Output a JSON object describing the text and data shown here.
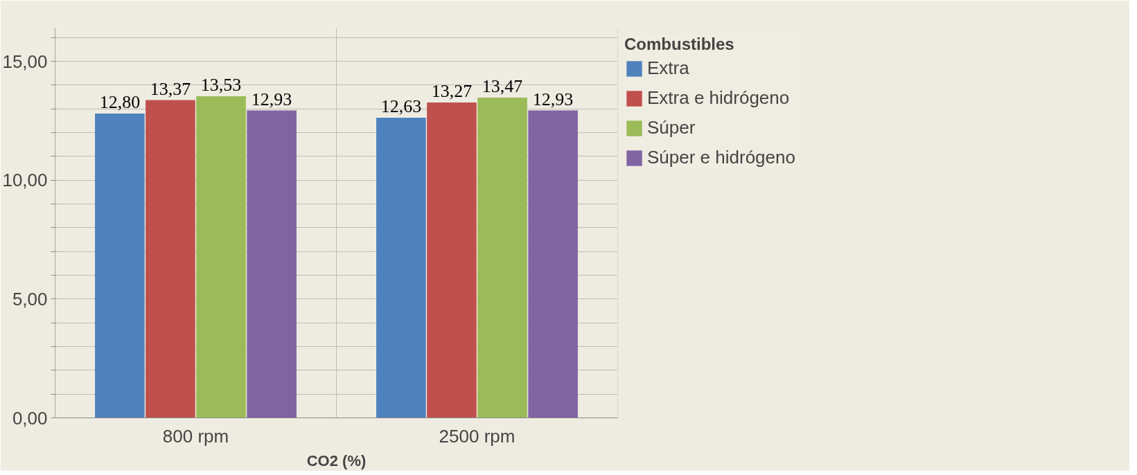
{
  "chart_data": {
    "type": "bar",
    "xlabel": "CO2 (%)",
    "legend_title": "Combustibles",
    "categories": [
      "800 rpm",
      "2500 rpm"
    ],
    "series": [
      {
        "name": "Extra",
        "color": "#4f81bd",
        "values": [
          12.8,
          12.63
        ],
        "value_labels": [
          "12,80",
          "12,63"
        ]
      },
      {
        "name": "Extra e hidrógeno",
        "color": "#c0504d",
        "values": [
          13.37,
          13.27
        ],
        "value_labels": [
          "13,37",
          "13,27"
        ]
      },
      {
        "name": "Súper",
        "color": "#9bbb59",
        "values": [
          13.53,
          13.47
        ],
        "value_labels": [
          "13,53",
          "13,47"
        ]
      },
      {
        "name": "Súper e hidrógeno",
        "color": "#8064a2",
        "values": [
          12.93,
          12.93
        ],
        "value_labels": [
          "12,93",
          "12,93"
        ]
      }
    ],
    "ylim": [
      0,
      16.4
    ],
    "yticks": [
      {
        "value": 0,
        "label": "0,00"
      },
      {
        "value": 1,
        "label": null
      },
      {
        "value": 2,
        "label": null
      },
      {
        "value": 3,
        "label": null
      },
      {
        "value": 4,
        "label": null
      },
      {
        "value": 5,
        "label": "5,00"
      },
      {
        "value": 6,
        "label": null
      },
      {
        "value": 7,
        "label": null
      },
      {
        "value": 8,
        "label": null
      },
      {
        "value": 9,
        "label": null
      },
      {
        "value": 10,
        "label": "10,00"
      },
      {
        "value": 11,
        "label": null
      },
      {
        "value": 12,
        "label": null
      },
      {
        "value": 13,
        "label": null
      },
      {
        "value": 14,
        "label": null
      },
      {
        "value": 15,
        "label": "15,00"
      },
      {
        "value": 16,
        "label": null
      }
    ],
    "grid": true,
    "legend": "right"
  }
}
